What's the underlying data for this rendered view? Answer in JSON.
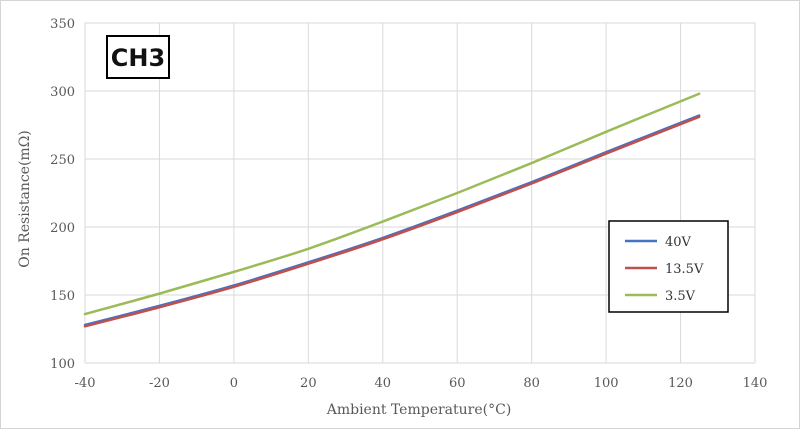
{
  "chart_data": {
    "type": "line",
    "title": "CH3",
    "xlabel": "Ambient Temperature(°C)",
    "ylabel": "On Resistance(mΩ)",
    "xlim": [
      -40,
      140
    ],
    "ylim": [
      100,
      350
    ],
    "xticks": [
      -40,
      -20,
      0,
      20,
      40,
      60,
      80,
      100,
      120,
      140
    ],
    "yticks": [
      100,
      150,
      200,
      250,
      300,
      350
    ],
    "grid": true,
    "legend_position": "right",
    "series": [
      {
        "name": "40V",
        "color": "#4472c4",
        "x": [
          -40,
          -20,
          0,
          20,
          40,
          60,
          80,
          100,
          125
        ],
        "y": [
          128,
          142,
          157,
          174,
          192,
          212,
          233,
          255,
          282
        ]
      },
      {
        "name": "13.5V",
        "color": "#c0504d",
        "x": [
          -40,
          -20,
          0,
          20,
          40,
          60,
          80,
          100,
          125
        ],
        "y": [
          127,
          141,
          156,
          173,
          191,
          211,
          232,
          254,
          281
        ]
      },
      {
        "name": "3.5V",
        "color": "#9bbb59",
        "x": [
          -40,
          -20,
          0,
          20,
          40,
          60,
          80,
          100,
          125
        ],
        "y": [
          136,
          151,
          167,
          184,
          204,
          225,
          247,
          270,
          298
        ]
      }
    ]
  }
}
